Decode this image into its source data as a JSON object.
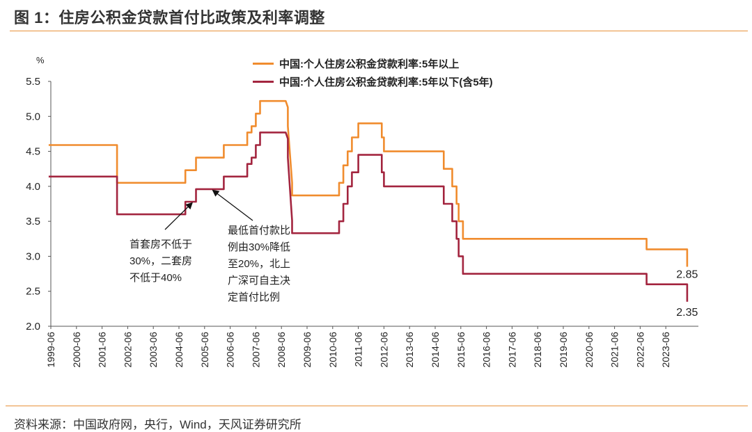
{
  "title": "图 1：住房公积金贷款首付比政策及利率调整",
  "source": "资料来源：中国政府网，央行，Wind，天风证券研究所",
  "chart_data": {
    "type": "line",
    "ylabel": "%",
    "ylim": [
      2.0,
      5.5
    ],
    "yticks": [
      "2.0",
      "2.5",
      "3.0",
      "3.5",
      "4.0",
      "4.5",
      "5.0",
      "5.5"
    ],
    "xticks": [
      "1999-06",
      "2000-06",
      "2001-06",
      "2002-06",
      "2003-06",
      "2004-06",
      "2005-06",
      "2006-06",
      "2007-06",
      "2008-06",
      "2009-06",
      "2010-06",
      "2011-06",
      "2012-06",
      "2013-06",
      "2014-06",
      "2015-06",
      "2016-06",
      "2017-06",
      "2018-06",
      "2019-06",
      "2020-06",
      "2021-06",
      "2022-06",
      "2023-06"
    ],
    "legend_position": "top-center",
    "series": [
      {
        "name": "中国:个人住房公积金贷款利率:5年以上",
        "color": "#f08c2e",
        "points": [
          [
            "1999-06",
            4.59
          ],
          [
            "2002-02",
            4.59
          ],
          [
            "2002-02",
            4.05
          ],
          [
            "2004-10",
            4.05
          ],
          [
            "2004-10",
            4.23
          ],
          [
            "2005-03",
            4.23
          ],
          [
            "2005-03",
            4.41
          ],
          [
            "2006-04",
            4.41
          ],
          [
            "2006-04",
            4.59
          ],
          [
            "2007-03",
            4.59
          ],
          [
            "2007-03",
            4.77
          ],
          [
            "2007-05",
            4.77
          ],
          [
            "2007-05",
            4.86
          ],
          [
            "2007-07",
            4.86
          ],
          [
            "2007-07",
            5.04
          ],
          [
            "2007-09",
            5.04
          ],
          [
            "2007-09",
            5.22
          ],
          [
            "2008-09",
            5.22
          ],
          [
            "2008-10",
            5.13
          ],
          [
            "2008-10",
            4.86
          ],
          [
            "2008-12",
            4.05
          ],
          [
            "2008-12",
            3.87
          ],
          [
            "2010-10",
            3.87
          ],
          [
            "2010-10",
            4.05
          ],
          [
            "2010-12",
            4.05
          ],
          [
            "2010-12",
            4.3
          ],
          [
            "2011-02",
            4.3
          ],
          [
            "2011-02",
            4.5
          ],
          [
            "2011-04",
            4.5
          ],
          [
            "2011-04",
            4.7
          ],
          [
            "2011-07",
            4.7
          ],
          [
            "2011-07",
            4.9
          ],
          [
            "2012-06",
            4.9
          ],
          [
            "2012-06",
            4.7
          ],
          [
            "2012-07",
            4.7
          ],
          [
            "2012-07",
            4.5
          ],
          [
            "2014-11",
            4.5
          ],
          [
            "2014-11",
            4.25
          ],
          [
            "2015-03",
            4.25
          ],
          [
            "2015-03",
            4.0
          ],
          [
            "2015-05",
            4.0
          ],
          [
            "2015-05",
            3.75
          ],
          [
            "2015-06",
            3.75
          ],
          [
            "2015-06",
            3.5
          ],
          [
            "2015-08",
            3.5
          ],
          [
            "2015-08",
            3.25
          ],
          [
            "2022-10",
            3.25
          ],
          [
            "2022-10",
            3.1
          ],
          [
            "2024-05",
            3.1
          ],
          [
            "2024-05",
            2.85
          ]
        ],
        "end_label": "2.85"
      },
      {
        "name": "中国:个人住房公积金贷款利率:5年以下(含5年)",
        "color": "#a3253f",
        "points": [
          [
            "1999-06",
            4.14
          ],
          [
            "2002-02",
            4.14
          ],
          [
            "2002-02",
            3.6
          ],
          [
            "2004-10",
            3.6
          ],
          [
            "2004-10",
            3.78
          ],
          [
            "2005-03",
            3.78
          ],
          [
            "2005-03",
            3.96
          ],
          [
            "2006-04",
            3.96
          ],
          [
            "2006-04",
            4.14
          ],
          [
            "2007-03",
            4.14
          ],
          [
            "2007-03",
            4.32
          ],
          [
            "2007-05",
            4.32
          ],
          [
            "2007-05",
            4.41
          ],
          [
            "2007-07",
            4.41
          ],
          [
            "2007-07",
            4.59
          ],
          [
            "2007-09",
            4.59
          ],
          [
            "2007-09",
            4.77
          ],
          [
            "2008-09",
            4.77
          ],
          [
            "2008-10",
            4.68
          ],
          [
            "2008-10",
            4.41
          ],
          [
            "2008-12",
            3.51
          ],
          [
            "2008-12",
            3.33
          ],
          [
            "2010-10",
            3.33
          ],
          [
            "2010-10",
            3.5
          ],
          [
            "2010-12",
            3.5
          ],
          [
            "2010-12",
            3.75
          ],
          [
            "2011-02",
            3.75
          ],
          [
            "2011-02",
            4.0
          ],
          [
            "2011-04",
            4.0
          ],
          [
            "2011-04",
            4.2
          ],
          [
            "2011-07",
            4.2
          ],
          [
            "2011-07",
            4.45
          ],
          [
            "2012-06",
            4.45
          ],
          [
            "2012-06",
            4.2
          ],
          [
            "2012-07",
            4.2
          ],
          [
            "2012-07",
            4.0
          ],
          [
            "2014-11",
            4.0
          ],
          [
            "2014-11",
            3.75
          ],
          [
            "2015-03",
            3.75
          ],
          [
            "2015-03",
            3.5
          ],
          [
            "2015-05",
            3.5
          ],
          [
            "2015-05",
            3.25
          ],
          [
            "2015-06",
            3.25
          ],
          [
            "2015-06",
            3.0
          ],
          [
            "2015-08",
            3.0
          ],
          [
            "2015-08",
            2.75
          ],
          [
            "2022-10",
            2.75
          ],
          [
            "2022-10",
            2.6
          ],
          [
            "2024-05",
            2.6
          ],
          [
            "2024-05",
            2.35
          ]
        ],
        "end_label": "2.35"
      }
    ],
    "annotations": [
      {
        "text": "首套房不低于\n30%，二套房\n不低于40%",
        "arrow_to": [
          "2005-03",
          3.78
        ]
      },
      {
        "text": "最低首付款比\n例由30%降低\n至20%，北上\n广深可自主决\n定首付比例",
        "arrow_to": [
          "2005-11",
          3.96
        ]
      }
    ]
  }
}
